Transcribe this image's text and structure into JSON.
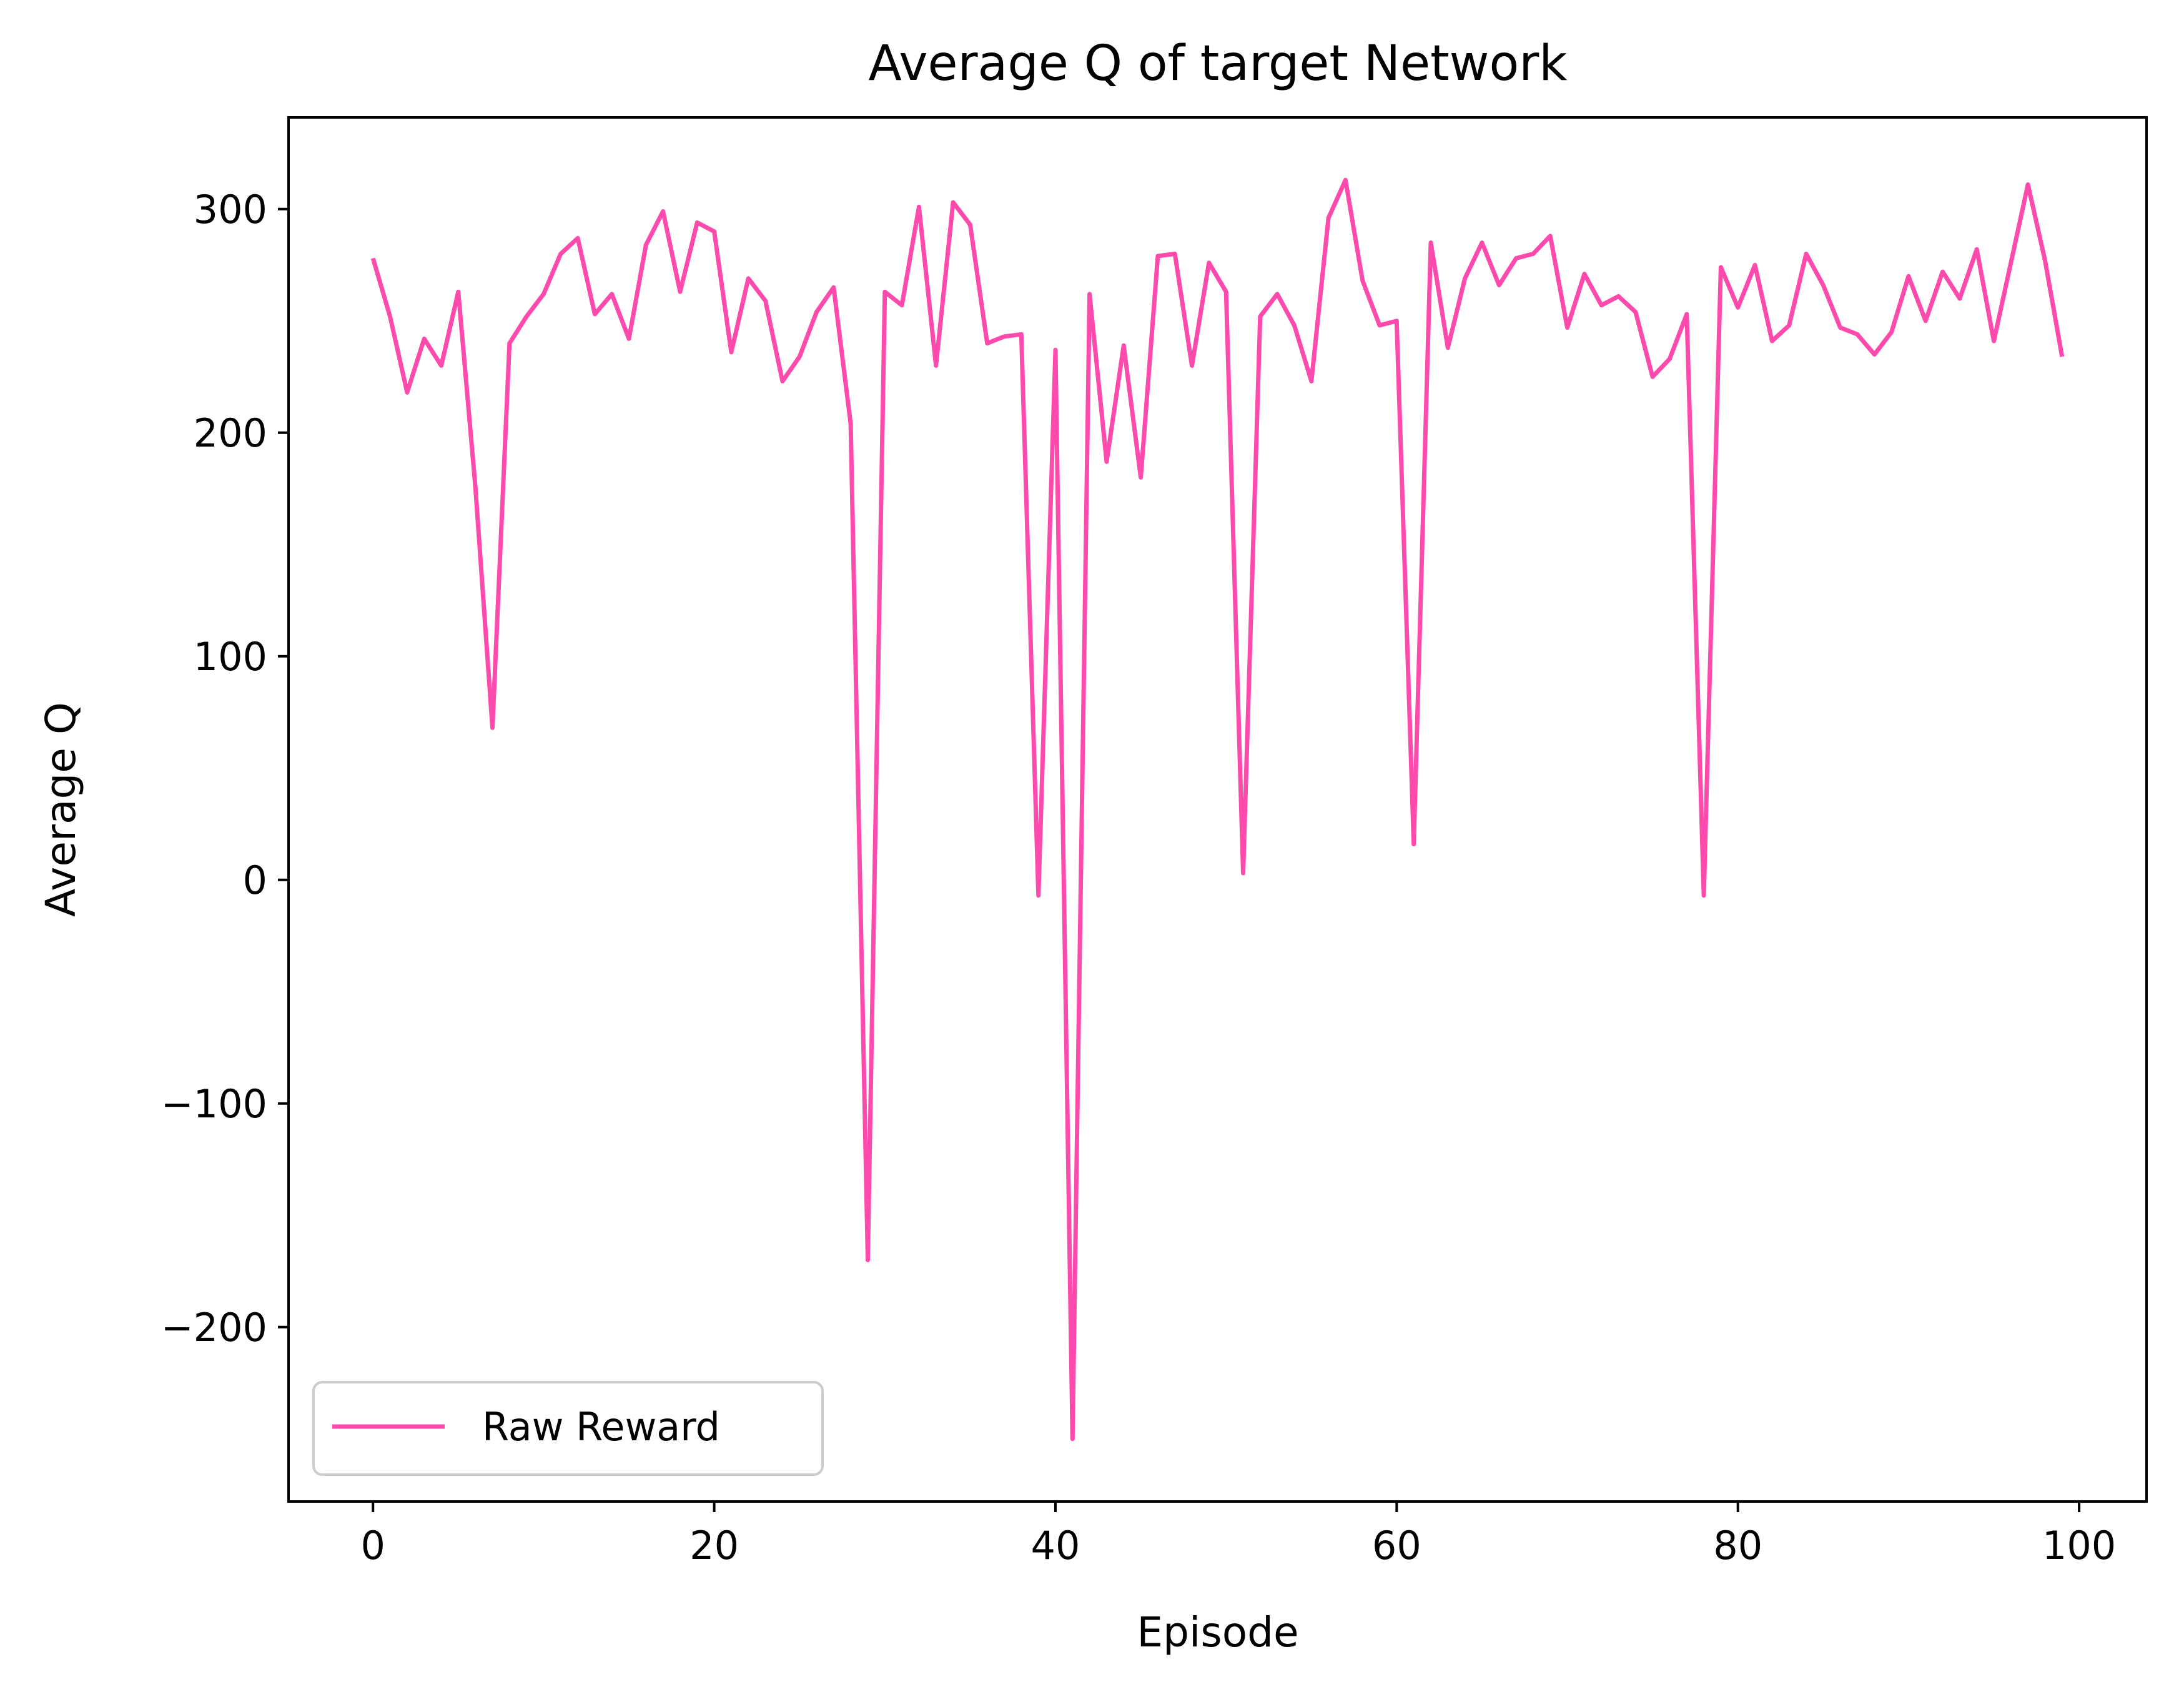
{
  "chart_data": {
    "type": "line",
    "title": "Average Q of target Network",
    "xlabel": "Episode",
    "ylabel": "Average Q",
    "xlim": [
      -4.95,
      103.95
    ],
    "ylim": [
      -278,
      341
    ],
    "xticks": [
      0,
      20,
      40,
      60,
      80,
      100
    ],
    "yticks": [
      -200,
      -100,
      0,
      100,
      200,
      300
    ],
    "ytick_labels": [
      "−200",
      "−100",
      "0",
      "100",
      "200",
      "300"
    ],
    "grid": false,
    "legend_position": "lower-left",
    "series": [
      {
        "name": "Raw Reward",
        "color": "#ff4aad",
        "x": [
          0,
          1,
          2,
          3,
          4,
          5,
          6,
          7,
          8,
          9,
          10,
          11,
          12,
          13,
          14,
          15,
          16,
          17,
          18,
          19,
          20,
          21,
          22,
          23,
          24,
          25,
          26,
          27,
          28,
          29,
          30,
          31,
          32,
          33,
          34,
          35,
          36,
          37,
          38,
          39,
          40,
          41,
          42,
          43,
          44,
          45,
          46,
          47,
          48,
          49,
          50,
          51,
          52,
          53,
          54,
          55,
          56,
          57,
          58,
          59,
          60,
          61,
          62,
          63,
          64,
          65,
          66,
          67,
          68,
          69,
          70,
          71,
          72,
          73,
          74,
          75,
          76,
          77,
          78,
          79,
          80,
          81,
          82,
          83,
          84,
          85,
          86,
          87,
          88,
          89,
          90,
          91,
          92,
          93,
          94,
          95,
          96,
          97,
          98,
          99
        ],
        "y": [
          278,
          252,
          218,
          242,
          230,
          263,
          176,
          68,
          240,
          252,
          262,
          280,
          287,
          253,
          262,
          242,
          284,
          299,
          263,
          294,
          290,
          236,
          269,
          259,
          223,
          234,
          254,
          265,
          204,
          -170,
          263,
          257,
          301,
          230,
          303,
          293,
          240,
          243,
          244,
          -7,
          237,
          -250,
          262,
          187,
          239,
          180,
          279,
          280,
          230,
          276,
          263,
          3,
          252,
          262,
          248,
          223,
          296,
          313,
          268,
          248,
          250,
          16,
          285,
          238,
          269,
          285,
          266,
          278,
          280,
          288,
          247,
          271,
          257,
          261,
          254,
          225,
          233,
          253,
          -7,
          274,
          256,
          275,
          241,
          248,
          280,
          266,
          247,
          244,
          235,
          245,
          270,
          250,
          272,
          260,
          282,
          241,
          276,
          311,
          277,
          234
        ]
      }
    ]
  }
}
